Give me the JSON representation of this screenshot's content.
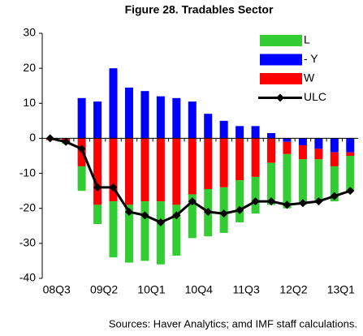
{
  "chart_data": {
    "type": "bar",
    "stacked": true,
    "title": "Figure 28. Tradables Sector",
    "source": "Sources: Haver Analytics; amd IMF staff calculations.",
    "categories": [
      "08Q3",
      null,
      null,
      "09Q2",
      null,
      null,
      "10Q1",
      null,
      null,
      "10Q4",
      null,
      null,
      "11Q3",
      null,
      null,
      "12Q2",
      null,
      null,
      "13Q1",
      null
    ],
    "series": [
      {
        "name": "L",
        "color": "#33cc33",
        "values": [
          0,
          -0.5,
          -7,
          -5.5,
          -16,
          -16.5,
          -17,
          -18,
          -14.5,
          -12.5,
          -13.5,
          -13,
          -12,
          -10.5,
          -12,
          -15.5,
          -13,
          -12,
          -10,
          -10
        ]
      },
      {
        "name": "- Y",
        "color": "#0000ff",
        "values": [
          0,
          0,
          11.5,
          10.5,
          20,
          14.5,
          13.5,
          12,
          11.5,
          10.5,
          7,
          5,
          3.5,
          3.5,
          1.5,
          -1,
          -2,
          -3,
          -4,
          -4
        ]
      },
      {
        "name": "W",
        "color": "#ff0000",
        "values": [
          -0.5,
          -1,
          -8,
          -19,
          -18,
          -19,
          -18,
          -18,
          -19,
          -16,
          -14.5,
          -14,
          -12,
          -11,
          -7,
          -3.5,
          -4,
          -3,
          -4,
          -1
        ]
      },
      {
        "name": "ULC",
        "type": "line",
        "color": "#000000",
        "values": [
          0,
          -1,
          -3,
          -14,
          -14,
          -21,
          -22,
          -24,
          -22,
          -18,
          -21,
          -21.5,
          -20.5,
          -18,
          -18,
          -19,
          -18.5,
          -18,
          -16.5,
          -15
        ]
      }
    ],
    "ylim": [
      -40,
      30
    ],
    "yticks": [
      -40,
      -30,
      -20,
      -10,
      0,
      10,
      20,
      30
    ]
  }
}
